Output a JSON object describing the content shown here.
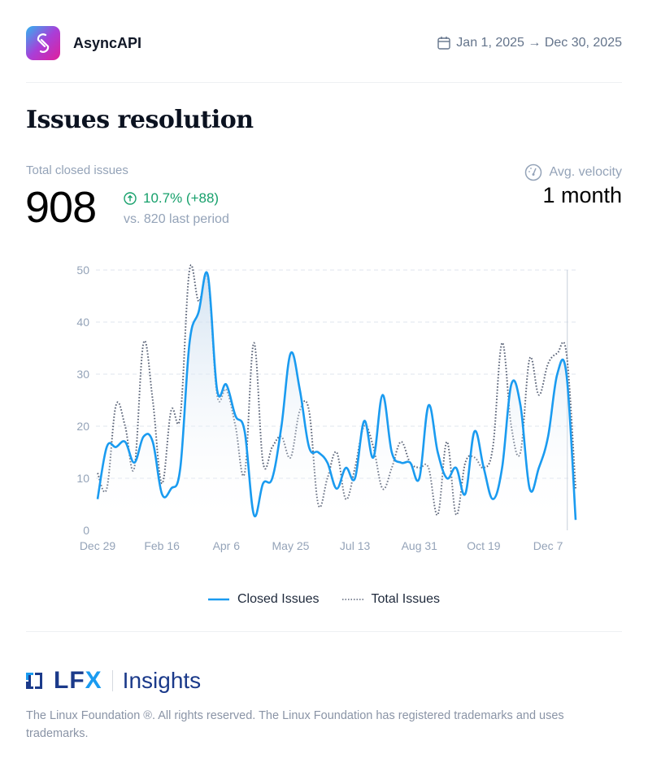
{
  "header": {
    "brand": "AsyncAPI",
    "brand_icon": "asyncapi-logo",
    "date_icon": "calendar-icon",
    "date_range": "Jan 1, 2025 → Dec 30, 2025"
  },
  "page_title": "Issues resolution",
  "kpi": {
    "label": "Total closed issues",
    "value": "908",
    "change": "10.7% (+88)",
    "change_icon": "arrow-up-circle-icon",
    "comparison": "vs. 820 last period",
    "positive_color": "#16a06b"
  },
  "velocity": {
    "label": "Avg. velocity",
    "icon": "gauge-icon",
    "value": "1 month"
  },
  "chart_data": {
    "type": "line",
    "x": [
      "Dec 29",
      "Jan 5",
      "Jan 12",
      "Jan 19",
      "Jan 26",
      "Feb 2",
      "Feb 9",
      "Feb 16",
      "Feb 23",
      "Mar 2",
      "Mar 9",
      "Mar 16",
      "Mar 23",
      "Mar 30",
      "Apr 6",
      "Apr 13",
      "Apr 20",
      "Apr 27",
      "May 4",
      "May 11",
      "May 18",
      "May 25",
      "Jun 1",
      "Jun 8",
      "Jun 15",
      "Jun 22",
      "Jun 29",
      "Jul 6",
      "Jul 13",
      "Jul 20",
      "Jul 27",
      "Aug 3",
      "Aug 10",
      "Aug 17",
      "Aug 24",
      "Aug 31",
      "Sep 7",
      "Sep 14",
      "Sep 21",
      "Sep 28",
      "Oct 5",
      "Oct 12",
      "Oct 19",
      "Oct 26",
      "Nov 2",
      "Nov 9",
      "Nov 16",
      "Nov 23",
      "Nov 30",
      "Dec 7",
      "Dec 14",
      "Dec 21",
      "Dec 28"
    ],
    "x_tick_labels": [
      "Dec 29",
      "Feb 16",
      "Apr 6",
      "May 25",
      "Jul 13",
      "Aug 31",
      "Oct 19",
      "Dec 7"
    ],
    "y_ticks": [
      "0",
      "10",
      "20",
      "30",
      "40",
      "50"
    ],
    "ylim": [
      0,
      50
    ],
    "grid": true,
    "legend_position": "bottom",
    "series": [
      {
        "name": "Closed Issues",
        "color": "#1a9bf0",
        "style": "solid",
        "area": true,
        "values": [
          6,
          16,
          16,
          17,
          13,
          18,
          17,
          7,
          8,
          12,
          36,
          42,
          49,
          27,
          28,
          22,
          19,
          3,
          9,
          10,
          20,
          34,
          27,
          16,
          15,
          13,
          8,
          12,
          10,
          21,
          14,
          26,
          15,
          13,
          13,
          10,
          24,
          15,
          10,
          12,
          7,
          19,
          12,
          6,
          12,
          28,
          24,
          8,
          12,
          18,
          30,
          30,
          2
        ]
      },
      {
        "name": "Total Issues",
        "color": "#5b6478",
        "style": "dotted",
        "area": false,
        "values": [
          11,
          8,
          24,
          20,
          12,
          36,
          25,
          9,
          23,
          22,
          50,
          44,
          48,
          26,
          27,
          20,
          11,
          36,
          13,
          16,
          18,
          14,
          23,
          23,
          5,
          10,
          15,
          6,
          12,
          20,
          16,
          8,
          12,
          17,
          13,
          12,
          12,
          3,
          17,
          3,
          13,
          14,
          12,
          16,
          36,
          20,
          15,
          33,
          26,
          32,
          34,
          34,
          8
        ]
      }
    ]
  },
  "footer": {
    "logo_text": "LFX",
    "product": "Insights",
    "copyright": "The Linux Foundation ®. All rights reserved. The Linux Foundation has registered trademarks and uses trademarks."
  }
}
